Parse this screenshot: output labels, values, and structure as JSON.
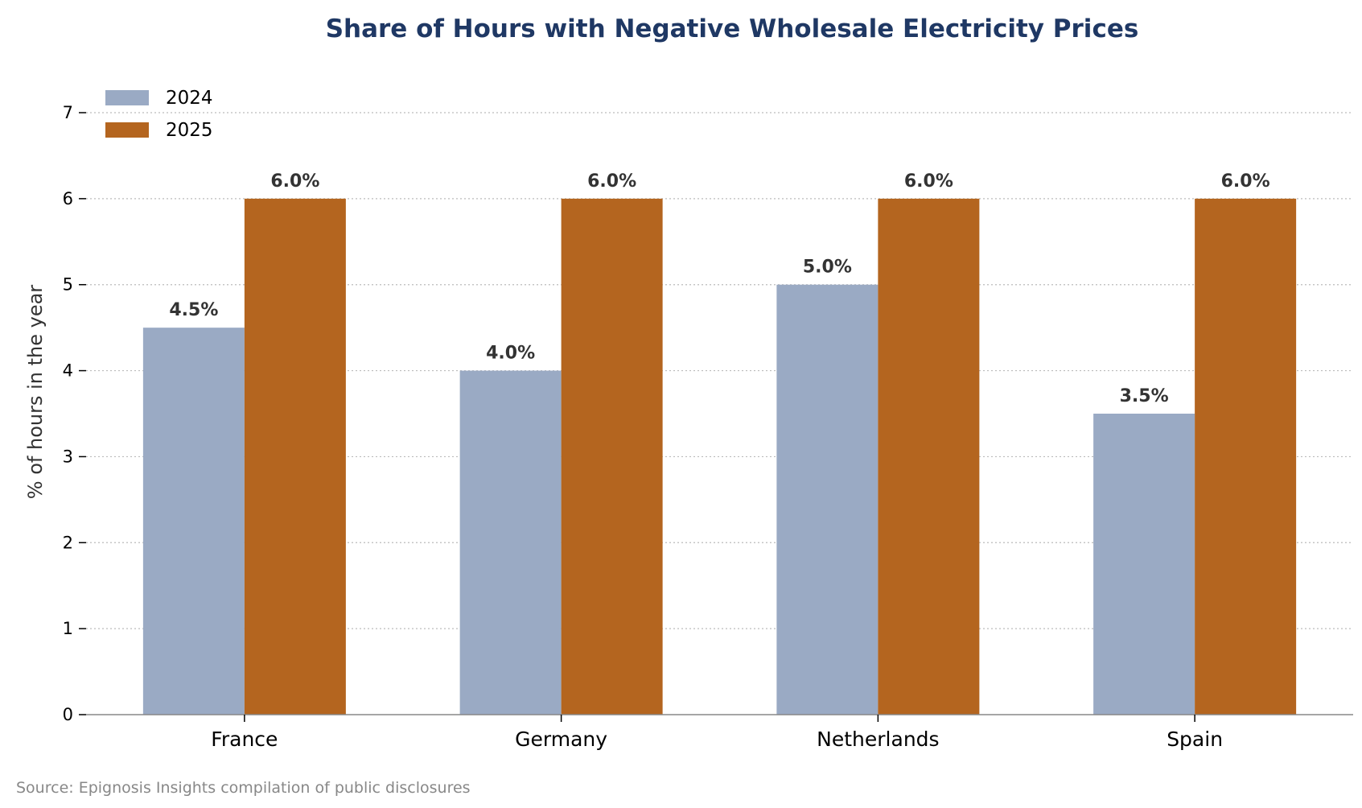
{
  "chart_data": {
    "type": "bar",
    "title": "Share of Hours with Negative Wholesale Electricity Prices",
    "ylabel": "% of hours in the year",
    "xlabel": "",
    "categories": [
      "France",
      "Germany",
      "Netherlands",
      "Spain"
    ],
    "series": [
      {
        "name": "2024",
        "color": "#9aaac4",
        "values": [
          4.5,
          4.0,
          5.0,
          3.5
        ],
        "labels": [
          "4.5%",
          "4.0%",
          "5.0%",
          "3.5%"
        ]
      },
      {
        "name": "2025",
        "color": "#b4651f",
        "values": [
          6.0,
          6.0,
          6.0,
          6.0
        ],
        "labels": [
          "6.0%",
          "6.0%",
          "6.0%",
          "6.0%"
        ]
      }
    ],
    "ylim": [
      0,
      7
    ],
    "yticks": [
      "0",
      "1",
      "2",
      "3",
      "4",
      "5",
      "6",
      "7"
    ],
    "grid": true,
    "legend_position": "top-left",
    "source": "Source: Epignosis Insights compilation of public disclosures"
  }
}
